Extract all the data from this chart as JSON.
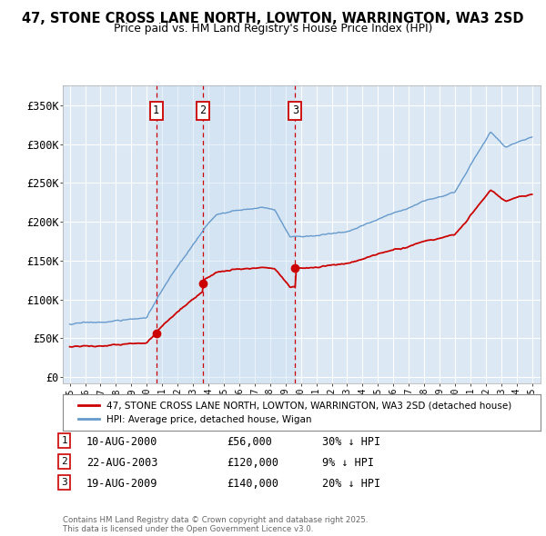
{
  "title": "47, STONE CROSS LANE NORTH, LOWTON, WARRINGTON, WA3 2SD",
  "subtitle": "Price paid vs. HM Land Registry's House Price Index (HPI)",
  "yticks": [
    0,
    50000,
    100000,
    150000,
    200000,
    250000,
    300000,
    350000
  ],
  "ytick_labels": [
    "£0",
    "£50K",
    "£100K",
    "£150K",
    "£200K",
    "£250K",
    "£300K",
    "£350K"
  ],
  "ylim": [
    -8000,
    375000
  ],
  "x_start_year": 1995,
  "x_end_year": 2025,
  "background_color": "#ffffff",
  "plot_bg_color": "#dce9f5",
  "grid_color": "#ffffff",
  "red_line_color": "#cc0000",
  "blue_line_color": "#6699cc",
  "dashed_line_color": "#cc0000",
  "sale_dates": [
    2000.61,
    2003.64,
    2009.63
  ],
  "sale_prices": [
    56000,
    120000,
    140000
  ],
  "sale_labels": [
    "1",
    "2",
    "3"
  ],
  "legend_red_label": "47, STONE CROSS LANE NORTH, LOWTON, WARRINGTON, WA3 2SD (detached house)",
  "legend_blue_label": "HPI: Average price, detached house, Wigan",
  "table_rows": [
    {
      "num": "1",
      "date": "10-AUG-2000",
      "price": "£56,000",
      "hpi": "30% ↓ HPI"
    },
    {
      "num": "2",
      "date": "22-AUG-2003",
      "price": "£120,000",
      "hpi": "9% ↓ HPI"
    },
    {
      "num": "3",
      "date": "19-AUG-2009",
      "price": "£140,000",
      "hpi": "20% ↓ HPI"
    }
  ],
  "footer": "Contains HM Land Registry data © Crown copyright and database right 2025.\nThis data is licensed under the Open Government Licence v3.0."
}
